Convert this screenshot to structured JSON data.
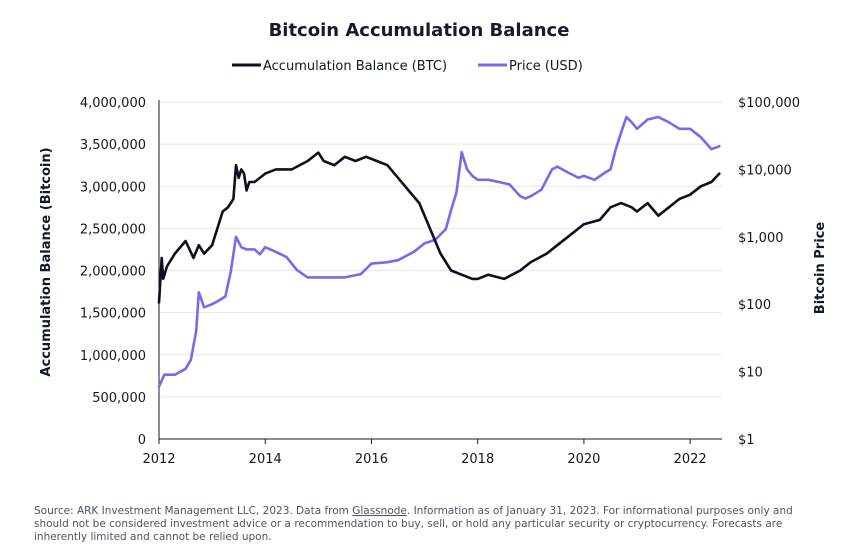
{
  "chart_data": {
    "type": "line",
    "title": "Bitcoin Accumulation Balance",
    "legend": [
      {
        "name": "Accumulation Balance (BTC)",
        "color": "#0f0f23"
      },
      {
        "name": "Price (USD)",
        "color": "#7b68ee"
      }
    ],
    "legend_position": "top-center",
    "ylabel_left": "Accumulation Balance (Bitcoin)",
    "ylabel_right": "Bitcoin Price",
    "xlim": [
      2012,
      2022.6
    ],
    "ylim_left": [
      0,
      4000000
    ],
    "ylim_right": [
      1,
      100000
    ],
    "right_scale": "log",
    "grid": "horizontal",
    "x_ticks": [
      "2012",
      "2014",
      "2016",
      "2018",
      "2020",
      "2022"
    ],
    "y_left_ticks": [
      "0",
      "500,000",
      "1,000,000",
      "1,500,000",
      "2,000,000",
      "2,500,000",
      "3,000,000",
      "3,500,000",
      "4,000,000"
    ],
    "y_right_ticks": [
      "$1",
      "$10",
      "$100",
      "$1,000",
      "$10,000",
      "$100,000"
    ],
    "series": [
      {
        "name": "Accumulation Balance (BTC)",
        "axis": "left",
        "x": [
          2012.0,
          2012.05,
          2012.08,
          2012.15,
          2012.3,
          2012.5,
          2012.65,
          2012.75,
          2012.85,
          2013.0,
          2013.1,
          2013.2,
          2013.3,
          2013.4,
          2013.45,
          2013.5,
          2013.55,
          2013.6,
          2013.65,
          2013.7,
          2013.8,
          2014.0,
          2014.2,
          2014.5,
          2014.8,
          2015.0,
          2015.1,
          2015.3,
          2015.5,
          2015.7,
          2015.9,
          2016.1,
          2016.3,
          2016.5,
          2016.7,
          2016.9,
          2017.0,
          2017.1,
          2017.3,
          2017.5,
          2017.7,
          2017.9,
          2018.0,
          2018.2,
          2018.5,
          2018.8,
          2019.0,
          2019.3,
          2019.5,
          2019.7,
          2019.9,
          2020.0,
          2020.3,
          2020.5,
          2020.7,
          2020.9,
          2021.0,
          2021.2,
          2021.4,
          2021.6,
          2021.8,
          2022.0,
          2022.2,
          2022.4,
          2022.55
        ],
        "values": [
          1620000,
          2150000,
          1900000,
          2050000,
          2200000,
          2350000,
          2150000,
          2300000,
          2200000,
          2300000,
          2500000,
          2700000,
          2750000,
          2850000,
          3250000,
          3100000,
          3200000,
          3150000,
          2950000,
          3050000,
          3050000,
          3150000,
          3200000,
          3200000,
          3300000,
          3400000,
          3300000,
          3250000,
          3350000,
          3300000,
          3350000,
          3300000,
          3250000,
          3100000,
          2950000,
          2800000,
          2650000,
          2500000,
          2200000,
          2000000,
          1950000,
          1900000,
          1900000,
          1950000,
          1900000,
          2000000,
          2100000,
          2200000,
          2300000,
          2400000,
          2500000,
          2550000,
          2600000,
          2750000,
          2800000,
          2750000,
          2700000,
          2800000,
          2650000,
          2750000,
          2850000,
          2900000,
          3000000,
          3050000,
          3150000
        ]
      },
      {
        "name": "Price (USD)",
        "axis": "right",
        "x": [
          2012.0,
          2012.1,
          2012.3,
          2012.5,
          2012.6,
          2012.7,
          2012.75,
          2012.85,
          2013.0,
          2013.1,
          2013.25,
          2013.35,
          2013.45,
          2013.55,
          2013.65,
          2013.8,
          2013.9,
          2014.0,
          2014.2,
          2014.4,
          2014.6,
          2014.8,
          2015.0,
          2015.2,
          2015.5,
          2015.8,
          2016.0,
          2016.3,
          2016.5,
          2016.8,
          2017.0,
          2017.2,
          2017.4,
          2017.5,
          2017.6,
          2017.7,
          2017.8,
          2017.9,
          2018.0,
          2018.2,
          2018.4,
          2018.6,
          2018.8,
          2018.9,
          2019.0,
          2019.2,
          2019.4,
          2019.5,
          2019.7,
          2019.9,
          2020.0,
          2020.2,
          2020.4,
          2020.5,
          2020.6,
          2020.7,
          2020.8,
          2020.9,
          2021.0,
          2021.2,
          2021.4,
          2021.6,
          2021.8,
          2022.0,
          2022.2,
          2022.4,
          2022.55
        ],
        "values": [
          6,
          9,
          9,
          11,
          15,
          40,
          150,
          90,
          100,
          110,
          130,
          300,
          1000,
          700,
          650,
          650,
          550,
          700,
          600,
          500,
          320,
          250,
          250,
          250,
          250,
          280,
          400,
          420,
          450,
          600,
          800,
          900,
          1300,
          2500,
          4500,
          18000,
          10000,
          8000,
          7000,
          7000,
          6500,
          6000,
          4000,
          3700,
          4000,
          5000,
          10000,
          11000,
          9000,
          7500,
          8000,
          7000,
          9000,
          10000,
          20000,
          35000,
          60000,
          50000,
          40000,
          55000,
          60000,
          50000,
          40000,
          40000,
          30000,
          20000,
          22000
        ]
      }
    ]
  },
  "footer": {
    "source_prefix": "Source: ARK Investment Management LLC, 2023. Data from ",
    "source_link": "Glassnode",
    "source_suffix": ". Information as of January 31, 2023. For informational purposes only and should not be considered investment advice or a recommendation to buy, sell, or hold any particular security or cryptocurrency. Forecasts are inherently limited and cannot be relied upon."
  }
}
